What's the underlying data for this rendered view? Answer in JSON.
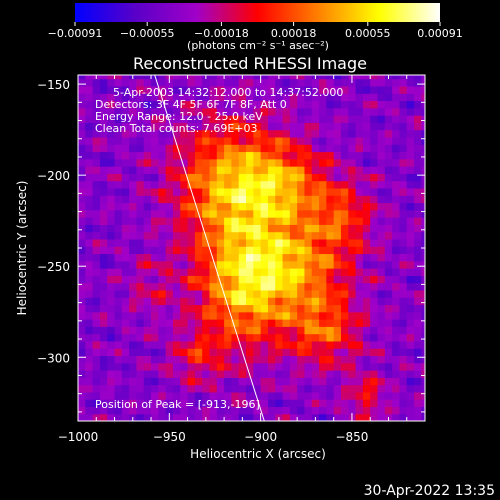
{
  "chart_data": {
    "type": "heatmap",
    "title": "Reconstructed RHESSI Image",
    "xlabel": "Heliocentric X (arcsec)",
    "ylabel": "Heliocentric Y (arcsec)",
    "xlim": [
      -1000,
      -810
    ],
    "ylim": [
      -335,
      -145
    ],
    "x_ticks": [
      -1000,
      -950,
      -900,
      -850
    ],
    "x_tick_labels": [
      "−1000",
      "−950",
      "−900",
      "−850"
    ],
    "y_ticks": [
      -150,
      -200,
      -250,
      -300
    ],
    "y_tick_labels": [
      "−150",
      "−200",
      "−250",
      "−300"
    ],
    "colorbar": {
      "range": [
        -0.00091,
        0.00091
      ],
      "ticks": [
        -0.00091,
        -0.00055,
        -0.00018,
        0.00018,
        0.00055,
        0.00091
      ],
      "tick_labels": [
        "−0.00091",
        "−0.00055",
        "−0.00018",
        "0.00018",
        "0.00055",
        "0.00091"
      ],
      "units": "(photons cm⁻² s⁻¹ asec⁻²)",
      "colors": [
        "#0000ff",
        "#5a00c8",
        "#a000c8",
        "#ff0000",
        "#ff8000",
        "#ffff00",
        "#ffffff"
      ]
    },
    "info_lines": [
      "5-Apr-2003 14:32:12.000 to 14:37:52.000",
      "Detectors: 3F 4F 5F 6F 7F 8F, Att 0",
      "Energy Range: 12.0 - 25.0 keV",
      "Clean     Total counts: 7.69E+03"
    ],
    "peak_text": "Position of Peak = [-913,-196]",
    "peak": [
      -913,
      -196
    ],
    "limb_line": {
      "from": [
        -958,
        -145
      ],
      "to": [
        -898,
        -335
      ]
    },
    "sources": [
      {
        "x": -915,
        "y": -205,
        "amp": 0.00085,
        "sx": 22,
        "sy": 24
      },
      {
        "x": -910,
        "y": -262,
        "amp": 0.0008,
        "sx": 18,
        "sy": 24
      },
      {
        "x": -880,
        "y": -250,
        "amp": 0.00065,
        "sx": 20,
        "sy": 18
      },
      {
        "x": -885,
        "y": -205,
        "amp": 0.0005,
        "sx": 16,
        "sy": 15
      },
      {
        "x": -865,
        "y": -285,
        "amp": 0.00055,
        "sx": 14,
        "sy": 14
      },
      {
        "x": -855,
        "y": -222,
        "amp": 0.00045,
        "sx": 12,
        "sy": 14
      },
      {
        "x": -935,
        "y": -300,
        "amp": 0.00035,
        "sx": 10,
        "sy": 10
      },
      {
        "x": -842,
        "y": -322,
        "amp": 0.00038,
        "sx": 8,
        "sy": 10
      },
      {
        "x": -960,
        "y": -262,
        "amp": 0.00022,
        "sx": 10,
        "sy": 12
      }
    ],
    "background_level": -0.00042,
    "grid": false
  },
  "footer": {
    "timestamp": "30-Apr-2022 13:35"
  }
}
